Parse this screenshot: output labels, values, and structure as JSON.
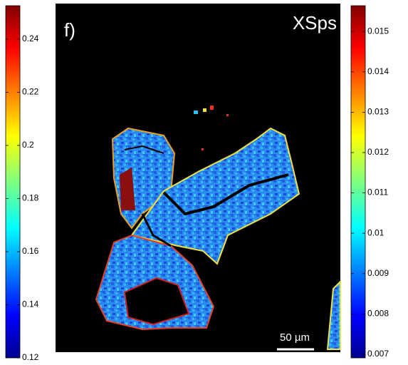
{
  "panel_label": "f)",
  "title": "XSps",
  "scale_bar": "50 µm",
  "left_colorbar": {
    "lim": [
      0.12,
      0.2526
    ],
    "ticks": [
      0.12,
      0.14,
      0.16,
      0.18,
      0.2,
      0.22,
      0.24
    ]
  },
  "right_colorbar": {
    "lim": [
      0.00691,
      0.01564
    ],
    "ticks": [
      0.007,
      0.008,
      0.009,
      0.01,
      0.011,
      0.012,
      0.013,
      0.014,
      0.015
    ]
  }
}
